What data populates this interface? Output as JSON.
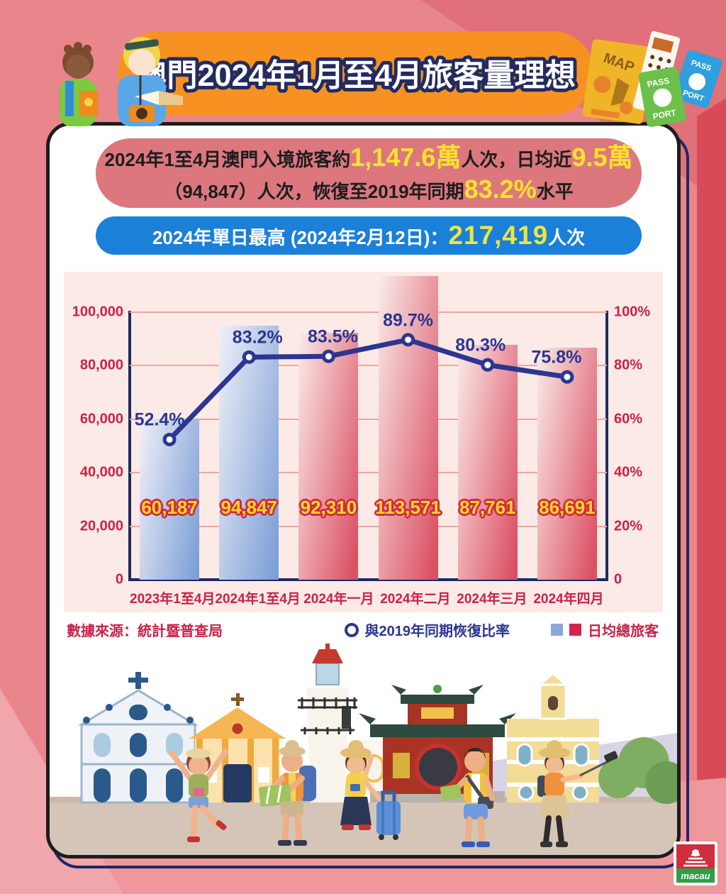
{
  "header": {
    "title": "澳門2024年1月至4月旅客量理想"
  },
  "summary": {
    "l1a": "2024年1至4月澳門入境旅客約",
    "l1b": "1,147.6萬",
    "l1c": "人次，日均近",
    "l1d": "9.5萬",
    "l2a": "（94,847）人次，恢復至2019年同期",
    "l2b": "83.2%",
    "l2c": "水平"
  },
  "highlight": {
    "pre": "2024年單日最高 (2024年2月12日)：",
    "value": "217,419",
    "suf": "人次"
  },
  "chart_data": {
    "type": "bar+line",
    "categories": [
      "2023年1至4月",
      "2024年1至4月",
      "2024年一月",
      "2024年二月",
      "2024年三月",
      "2024年四月"
    ],
    "series": [
      {
        "name": "日均總旅客",
        "type": "bar",
        "values": [
          60187,
          94847,
          92310,
          113571,
          87761,
          86691
        ],
        "value_labels": [
          "60,187",
          "94,847",
          "92,310",
          "113,571",
          "87,761",
          "86,691"
        ],
        "bar_colors": [
          "blue",
          "blue",
          "red",
          "red",
          "red",
          "red"
        ]
      },
      {
        "name": "與2019年同期恢復比率",
        "type": "line",
        "values": [
          52.4,
          83.2,
          83.5,
          89.7,
          80.3,
          75.8
        ],
        "point_labels": [
          "52.4%",
          "83.2%",
          "83.5%",
          "89.7%",
          "80.3%",
          "75.8%"
        ]
      }
    ],
    "left_axis": {
      "ticks": [
        "100,000",
        "80,000",
        "60,000",
        "40,000",
        "20,000",
        "0"
      ],
      "max": 100000
    },
    "right_axis": {
      "ticks": [
        "100%",
        "80%",
        "60%",
        "40%",
        "20%",
        "0"
      ],
      "max": 100
    },
    "grid": true,
    "legend_position": "bottom-right"
  },
  "footer": {
    "source": "數據來源：統計暨普查局",
    "legend_line": "與2019年同期恢復比率",
    "legend_bars": "日均總旅客"
  },
  "logo": {
    "text": "macau"
  },
  "colors": {
    "background": "#e8868c",
    "banner_orange": "#f79222",
    "pill_red": "#dc777e",
    "pill_blue": "#1a80d8",
    "accent_yellow": "#ffe22c",
    "crimson_text": "#c72349",
    "navy_line": "#2c3590",
    "bar_blue": "#7da0d6",
    "bar_red": "#db4f63",
    "panel_pink": "#fceae7"
  }
}
